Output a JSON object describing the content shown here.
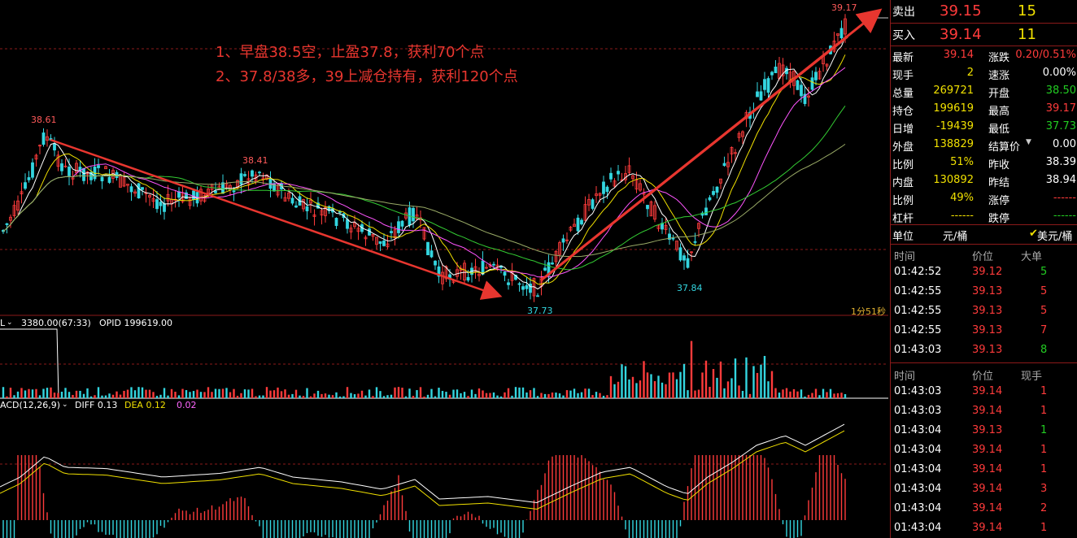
{
  "annotations": [
    "1、早盘38.5空，止盈37.8，获利70个点",
    "2、37.8/38多，39上减仓持有，获利120个点"
  ],
  "price_labels": {
    "high_left": "38.61",
    "mid_high": "38.41",
    "low1": "37.73",
    "low2": "37.84",
    "top": "39.17"
  },
  "countdown": "1分51秒",
  "volume_panel": {
    "indicator": "L",
    "values": "3380.00(67:33)",
    "opid": "OPID 199619.00"
  },
  "macd_panel": {
    "label": "ACD(12,26,9)",
    "diff": "DIFF 0.13",
    "dea": "DEA 0.12",
    "macd": "0.02"
  },
  "quote": {
    "sell_label": "卖出",
    "sell_price": "39.15",
    "sell_qty": "15",
    "buy_label": "买入",
    "buy_price": "39.14",
    "buy_qty": "11"
  },
  "stats": [
    {
      "l1": "最新",
      "v1": "39.14",
      "c1": "red",
      "l2": "涨跌",
      "v2": "0.20/0.51%",
      "c2": "red"
    },
    {
      "l1": "现手",
      "v1": "2",
      "c1": "yel",
      "l2": "速涨",
      "v2": "0.00%",
      "c2": "wht"
    },
    {
      "l1": "总量",
      "v1": "269721",
      "c1": "yel",
      "l2": "开盘",
      "v2": "38.50",
      "c2": "grn"
    },
    {
      "l1": "持仓",
      "v1": "199619",
      "c1": "yel",
      "l2": "最高",
      "v2": "39.17",
      "c2": "red"
    },
    {
      "l1": "日增",
      "v1": "-19439",
      "c1": "yel",
      "l2": "最低",
      "v2": "37.73",
      "c2": "grn"
    },
    {
      "l1": "外盘",
      "v1": "138829",
      "c1": "yel",
      "l2": "结算价",
      "v2": "0.00",
      "c2": "wht"
    },
    {
      "l1": "比例",
      "v1": "51%",
      "c1": "yel",
      "l2": "昨收",
      "v2": "38.39",
      "c2": "wht"
    },
    {
      "l1": "内盘",
      "v1": "130892",
      "c1": "yel",
      "l2": "昨结",
      "v2": "38.94",
      "c2": "wht"
    },
    {
      "l1": "比例",
      "v1": "49%",
      "c1": "yel",
      "l2": "涨停",
      "v2": "------",
      "c2": "red"
    },
    {
      "l1": "杠杆",
      "v1": "------",
      "c1": "yel",
      "l2": "跌停",
      "v2": "------",
      "c2": "grn"
    }
  ],
  "unit_row": {
    "label": "单位",
    "unit": "元/桶",
    "check": "✔",
    "alt_unit": "美元/桶"
  },
  "big_orders": {
    "headers": [
      "时间",
      "价位",
      "大单"
    ],
    "rows": [
      {
        "time": "01:42:52",
        "price": "39.12",
        "qty": "5",
        "qc": "grn"
      },
      {
        "time": "01:42:55",
        "price": "39.13",
        "qty": "5",
        "qc": "red"
      },
      {
        "time": "01:42:55",
        "price": "39.13",
        "qty": "5",
        "qc": "red"
      },
      {
        "time": "01:42:55",
        "price": "39.13",
        "qty": "7",
        "qc": "red"
      },
      {
        "time": "01:43:03",
        "price": "39.13",
        "qty": "8",
        "qc": "grn"
      }
    ]
  },
  "ticks": {
    "headers": [
      "时间",
      "价位",
      "现手"
    ],
    "rows": [
      {
        "time": "01:43:03",
        "price": "39.14",
        "qty": "1",
        "qc": "red"
      },
      {
        "time": "01:43:03",
        "price": "39.14",
        "qty": "1",
        "qc": "red"
      },
      {
        "time": "01:43:04",
        "price": "39.13",
        "qty": "1",
        "qc": "grn"
      },
      {
        "time": "01:43:04",
        "price": "39.14",
        "qty": "1",
        "qc": "red"
      },
      {
        "time": "01:43:04",
        "price": "39.14",
        "qty": "1",
        "qc": "red"
      },
      {
        "time": "01:43:04",
        "price": "39.14",
        "qty": "3",
        "qc": "red"
      },
      {
        "time": "01:43:04",
        "price": "39.14",
        "qty": "2",
        "qc": "red"
      },
      {
        "time": "01:43:04",
        "price": "39.14",
        "qty": "1",
        "qc": "red"
      }
    ]
  },
  "colors": {
    "up": "#ff3b3b",
    "down": "#33d6e0",
    "grid": "#8b1a1a",
    "arrow": "#e8362f"
  }
}
